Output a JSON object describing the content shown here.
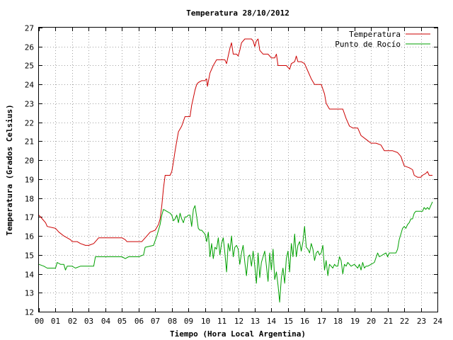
{
  "chart_data": {
    "type": "line",
    "title": "Temperatura 28/10/2012",
    "xlabel": "Tiempo (Hora Local Argentina)",
    "ylabel": "Temperatura (Grados Celsius)",
    "xlim": [
      0,
      24
    ],
    "ylim": [
      12,
      27
    ],
    "x_ticks": [
      "00",
      "01",
      "02",
      "03",
      "04",
      "05",
      "06",
      "07",
      "08",
      "09",
      "10",
      "11",
      "12",
      "13",
      "14",
      "15",
      "16",
      "17",
      "18",
      "19",
      "20",
      "21",
      "22",
      "23",
      "24"
    ],
    "y_ticks": [
      "12",
      "13",
      "14",
      "15",
      "16",
      "17",
      "18",
      "19",
      "20",
      "21",
      "22",
      "23",
      "24",
      "25",
      "26",
      "27"
    ],
    "grid": true,
    "legend_position": "top-right",
    "series": [
      {
        "name": "Temperatura",
        "color": "#cc0000",
        "points": [
          [
            0.0,
            17.1
          ],
          [
            0.2,
            16.9
          ],
          [
            0.4,
            16.7
          ],
          [
            0.5,
            16.5
          ],
          [
            1.0,
            16.4
          ],
          [
            1.2,
            16.2
          ],
          [
            1.5,
            16.0
          ],
          [
            1.9,
            15.8
          ],
          [
            2.0,
            15.7
          ],
          [
            2.3,
            15.7
          ],
          [
            2.5,
            15.6
          ],
          [
            2.8,
            15.5
          ],
          [
            3.0,
            15.5
          ],
          [
            3.3,
            15.6
          ],
          [
            3.5,
            15.8
          ],
          [
            3.6,
            15.9
          ],
          [
            4.0,
            15.9
          ],
          [
            4.5,
            15.9
          ],
          [
            5.0,
            15.9
          ],
          [
            5.2,
            15.8
          ],
          [
            5.3,
            15.7
          ],
          [
            5.8,
            15.7
          ],
          [
            6.2,
            15.7
          ],
          [
            6.5,
            16.0
          ],
          [
            6.7,
            16.2
          ],
          [
            7.0,
            16.3
          ],
          [
            7.2,
            16.6
          ],
          [
            7.3,
            16.9
          ],
          [
            7.4,
            17.6
          ],
          [
            7.5,
            18.5
          ],
          [
            7.6,
            19.2
          ],
          [
            7.9,
            19.2
          ],
          [
            8.0,
            19.4
          ],
          [
            8.1,
            19.9
          ],
          [
            8.2,
            20.5
          ],
          [
            8.3,
            21.0
          ],
          [
            8.4,
            21.5
          ],
          [
            8.6,
            21.8
          ],
          [
            8.8,
            22.3
          ],
          [
            9.1,
            22.3
          ],
          [
            9.2,
            22.9
          ],
          [
            9.3,
            23.3
          ],
          [
            9.4,
            23.7
          ],
          [
            9.5,
            24.0
          ],
          [
            9.6,
            24.1
          ],
          [
            9.8,
            24.2
          ],
          [
            10.0,
            24.2
          ],
          [
            10.1,
            24.3
          ],
          [
            10.15,
            23.9
          ],
          [
            10.3,
            24.6
          ],
          [
            10.5,
            25.0
          ],
          [
            10.7,
            25.3
          ],
          [
            11.0,
            25.3
          ],
          [
            11.2,
            25.3
          ],
          [
            11.3,
            25.1
          ],
          [
            11.4,
            25.5
          ],
          [
            11.5,
            25.9
          ],
          [
            11.6,
            26.2
          ],
          [
            11.7,
            25.6
          ],
          [
            11.9,
            25.6
          ],
          [
            12.0,
            25.5
          ],
          [
            12.1,
            25.8
          ],
          [
            12.2,
            26.2
          ],
          [
            12.4,
            26.4
          ],
          [
            12.6,
            26.4
          ],
          [
            12.8,
            26.4
          ],
          [
            12.9,
            26.3
          ],
          [
            13.0,
            26.0
          ],
          [
            13.1,
            26.3
          ],
          [
            13.2,
            26.4
          ],
          [
            13.3,
            25.8
          ],
          [
            13.5,
            25.6
          ],
          [
            13.8,
            25.6
          ],
          [
            14.0,
            25.4
          ],
          [
            14.2,
            25.4
          ],
          [
            14.3,
            25.6
          ],
          [
            14.4,
            25.0
          ],
          [
            14.6,
            25.0
          ],
          [
            14.9,
            25.0
          ],
          [
            15.0,
            24.9
          ],
          [
            15.1,
            24.8
          ],
          [
            15.2,
            25.1
          ],
          [
            15.4,
            25.2
          ],
          [
            15.5,
            25.5
          ],
          [
            15.6,
            25.2
          ],
          [
            15.8,
            25.2
          ],
          [
            16.0,
            25.1
          ],
          [
            16.2,
            24.7
          ],
          [
            16.4,
            24.3
          ],
          [
            16.6,
            24.0
          ],
          [
            17.0,
            24.0
          ],
          [
            17.2,
            23.5
          ],
          [
            17.3,
            23.0
          ],
          [
            17.5,
            22.7
          ],
          [
            18.0,
            22.7
          ],
          [
            18.3,
            22.7
          ],
          [
            18.5,
            22.2
          ],
          [
            18.7,
            21.8
          ],
          [
            18.9,
            21.7
          ],
          [
            19.2,
            21.7
          ],
          [
            19.4,
            21.3
          ],
          [
            19.7,
            21.1
          ],
          [
            20.0,
            20.9
          ],
          [
            20.3,
            20.9
          ],
          [
            20.6,
            20.8
          ],
          [
            20.8,
            20.5
          ],
          [
            21.3,
            20.5
          ],
          [
            21.6,
            20.4
          ],
          [
            21.8,
            20.2
          ],
          [
            22.0,
            19.7
          ],
          [
            22.3,
            19.6
          ],
          [
            22.5,
            19.5
          ],
          [
            22.6,
            19.2
          ],
          [
            22.8,
            19.1
          ],
          [
            23.0,
            19.1
          ],
          [
            23.1,
            19.2
          ],
          [
            23.3,
            19.3
          ],
          [
            23.4,
            19.4
          ],
          [
            23.5,
            19.2
          ],
          [
            23.7,
            19.2
          ]
        ]
      },
      {
        "name": "Punto de Rocío",
        "color": "#00a000",
        "points": [
          [
            0.0,
            14.5
          ],
          [
            0.3,
            14.4
          ],
          [
            0.5,
            14.3
          ],
          [
            1.0,
            14.3
          ],
          [
            1.1,
            14.6
          ],
          [
            1.3,
            14.5
          ],
          [
            1.5,
            14.5
          ],
          [
            1.6,
            14.2
          ],
          [
            1.7,
            14.4
          ],
          [
            2.0,
            14.4
          ],
          [
            2.2,
            14.3
          ],
          [
            2.5,
            14.4
          ],
          [
            3.0,
            14.4
          ],
          [
            3.3,
            14.4
          ],
          [
            3.4,
            14.9
          ],
          [
            3.6,
            14.9
          ],
          [
            4.0,
            14.9
          ],
          [
            4.5,
            14.9
          ],
          [
            5.0,
            14.9
          ],
          [
            5.2,
            14.8
          ],
          [
            5.4,
            14.9
          ],
          [
            6.0,
            14.9
          ],
          [
            6.3,
            15.0
          ],
          [
            6.4,
            15.4
          ],
          [
            6.9,
            15.5
          ],
          [
            7.1,
            16.0
          ],
          [
            7.3,
            16.6
          ],
          [
            7.4,
            17.1
          ],
          [
            7.5,
            17.4
          ],
          [
            7.7,
            17.3
          ],
          [
            7.9,
            17.2
          ],
          [
            8.0,
            17.1
          ],
          [
            8.1,
            16.8
          ],
          [
            8.2,
            16.9
          ],
          [
            8.3,
            17.1
          ],
          [
            8.4,
            16.7
          ],
          [
            8.5,
            17.2
          ],
          [
            8.6,
            16.9
          ],
          [
            8.7,
            16.7
          ],
          [
            8.8,
            17.0
          ],
          [
            8.9,
            17.0
          ],
          [
            9.0,
            17.1
          ],
          [
            9.1,
            17.1
          ],
          [
            9.2,
            16.5
          ],
          [
            9.3,
            17.4
          ],
          [
            9.4,
            17.6
          ],
          [
            9.5,
            17.0
          ],
          [
            9.6,
            16.4
          ],
          [
            9.7,
            16.3
          ],
          [
            9.8,
            16.3
          ],
          [
            9.9,
            16.2
          ],
          [
            10.0,
            16.1
          ],
          [
            10.1,
            15.7
          ],
          [
            10.2,
            16.2
          ],
          [
            10.3,
            14.9
          ],
          [
            10.4,
            15.6
          ],
          [
            10.5,
            14.8
          ],
          [
            10.6,
            15.4
          ],
          [
            10.7,
            15.3
          ],
          [
            10.8,
            15.9
          ],
          [
            10.9,
            15.0
          ],
          [
            11.0,
            15.6
          ],
          [
            11.1,
            15.9
          ],
          [
            11.2,
            15.1
          ],
          [
            11.3,
            14.1
          ],
          [
            11.4,
            15.6
          ],
          [
            11.5,
            15.2
          ],
          [
            11.6,
            16.0
          ],
          [
            11.7,
            14.9
          ],
          [
            11.8,
            15.4
          ],
          [
            11.9,
            15.5
          ],
          [
            12.0,
            15.3
          ],
          [
            12.1,
            14.5
          ],
          [
            12.2,
            15.1
          ],
          [
            12.3,
            15.5
          ],
          [
            12.4,
            14.6
          ],
          [
            12.5,
            13.9
          ],
          [
            12.6,
            14.9
          ],
          [
            12.7,
            15.0
          ],
          [
            12.8,
            14.4
          ],
          [
            12.9,
            15.2
          ],
          [
            13.0,
            14.4
          ],
          [
            13.1,
            13.5
          ],
          [
            13.2,
            15.1
          ],
          [
            13.3,
            13.8
          ],
          [
            13.4,
            14.6
          ],
          [
            13.5,
            14.9
          ],
          [
            13.6,
            15.2
          ],
          [
            13.7,
            14.4
          ],
          [
            13.8,
            13.6
          ],
          [
            13.9,
            15.1
          ],
          [
            14.0,
            14.2
          ],
          [
            14.1,
            15.3
          ],
          [
            14.2,
            13.7
          ],
          [
            14.3,
            14.1
          ],
          [
            14.4,
            13.4
          ],
          [
            14.5,
            12.5
          ],
          [
            14.6,
            13.8
          ],
          [
            14.7,
            14.3
          ],
          [
            14.8,
            13.5
          ],
          [
            14.9,
            14.8
          ],
          [
            15.0,
            15.2
          ],
          [
            15.1,
            14.1
          ],
          [
            15.2,
            15.6
          ],
          [
            15.3,
            14.9
          ],
          [
            15.4,
            16.1
          ],
          [
            15.5,
            14.9
          ],
          [
            15.6,
            15.5
          ],
          [
            15.7,
            15.7
          ],
          [
            15.8,
            15.2
          ],
          [
            15.9,
            15.7
          ],
          [
            16.0,
            16.5
          ],
          [
            16.1,
            15.4
          ],
          [
            16.2,
            15.3
          ],
          [
            16.3,
            15.1
          ],
          [
            16.4,
            15.6
          ],
          [
            16.5,
            15.3
          ],
          [
            16.6,
            14.7
          ],
          [
            16.7,
            15.1
          ],
          [
            16.8,
            15.2
          ],
          [
            16.9,
            15.0
          ],
          [
            17.0,
            15.1
          ],
          [
            17.1,
            15.5
          ],
          [
            17.2,
            14.2
          ],
          [
            17.3,
            14.7
          ],
          [
            17.4,
            13.9
          ],
          [
            17.5,
            14.5
          ],
          [
            17.6,
            14.4
          ],
          [
            17.7,
            14.3
          ],
          [
            17.8,
            14.5
          ],
          [
            17.9,
            14.4
          ],
          [
            18.0,
            14.4
          ],
          [
            18.1,
            14.9
          ],
          [
            18.2,
            14.7
          ],
          [
            18.3,
            14.0
          ],
          [
            18.4,
            14.5
          ],
          [
            18.5,
            14.4
          ],
          [
            18.6,
            14.6
          ],
          [
            18.8,
            14.4
          ],
          [
            19.0,
            14.5
          ],
          [
            19.2,
            14.3
          ],
          [
            19.3,
            14.5
          ],
          [
            19.4,
            14.2
          ],
          [
            19.5,
            14.6
          ],
          [
            19.6,
            14.3
          ],
          [
            19.7,
            14.4
          ],
          [
            19.8,
            14.4
          ],
          [
            20.0,
            14.5
          ],
          [
            20.2,
            14.6
          ],
          [
            20.4,
            15.1
          ],
          [
            20.5,
            14.9
          ],
          [
            20.7,
            15.0
          ],
          [
            20.9,
            15.1
          ],
          [
            21.0,
            14.9
          ],
          [
            21.1,
            15.1
          ],
          [
            21.3,
            15.1
          ],
          [
            21.5,
            15.1
          ],
          [
            21.6,
            15.3
          ],
          [
            21.7,
            15.8
          ],
          [
            21.8,
            16.1
          ],
          [
            21.9,
            16.4
          ],
          [
            22.0,
            16.5
          ],
          [
            22.1,
            16.4
          ],
          [
            22.2,
            16.6
          ],
          [
            22.3,
            16.7
          ],
          [
            22.4,
            16.9
          ],
          [
            22.5,
            16.9
          ],
          [
            22.6,
            17.2
          ],
          [
            22.7,
            17.3
          ],
          [
            22.9,
            17.3
          ],
          [
            23.1,
            17.3
          ],
          [
            23.2,
            17.5
          ],
          [
            23.3,
            17.4
          ],
          [
            23.4,
            17.5
          ],
          [
            23.5,
            17.4
          ],
          [
            23.6,
            17.6
          ],
          [
            23.7,
            17.8
          ]
        ]
      }
    ]
  }
}
